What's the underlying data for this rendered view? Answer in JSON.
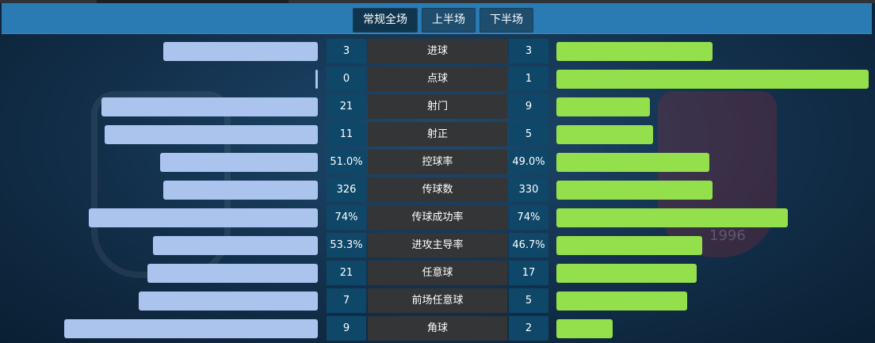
{
  "tabs": [
    "常规全场",
    "上半场",
    "下半场"
  ],
  "active_tab": 0,
  "watermark_year": "1996",
  "colors": {
    "home_bar": "#aac4ee",
    "away_bar": "#94e04c",
    "value_bg": "#0e4768",
    "label_bg": "#333536"
  },
  "stats": [
    {
      "label": "进球",
      "home": "3",
      "away": "3",
      "home_share": 0.5,
      "away_share": 0.5
    },
    {
      "label": "点球",
      "home": "0",
      "away": "1",
      "home_share": 0.0,
      "away_share": 1.0
    },
    {
      "label": "射门",
      "home": "21",
      "away": "9",
      "home_share": 0.7,
      "away_share": 0.3
    },
    {
      "label": "射正",
      "home": "11",
      "away": "5",
      "home_share": 0.69,
      "away_share": 0.31
    },
    {
      "label": "控球率",
      "home": "51.0%",
      "away": "49.0%",
      "home_share": 0.51,
      "away_share": 0.49
    },
    {
      "label": "传球数",
      "home": "326",
      "away": "330",
      "home_share": 0.5,
      "away_share": 0.5
    },
    {
      "label": "传球成功率",
      "home": "74%",
      "away": "74%",
      "home_share": 0.74,
      "away_share": 0.74
    },
    {
      "label": "进攻主导率",
      "home": "53.3%",
      "away": "46.7%",
      "home_share": 0.533,
      "away_share": 0.467
    },
    {
      "label": "任意球",
      "home": "21",
      "away": "17",
      "home_share": 0.55,
      "away_share": 0.45
    },
    {
      "label": "前场任意球",
      "home": "7",
      "away": "5",
      "home_share": 0.58,
      "away_share": 0.42
    },
    {
      "label": "角球",
      "home": "9",
      "away": "2",
      "home_share": 0.82,
      "away_share": 0.18
    }
  ]
}
